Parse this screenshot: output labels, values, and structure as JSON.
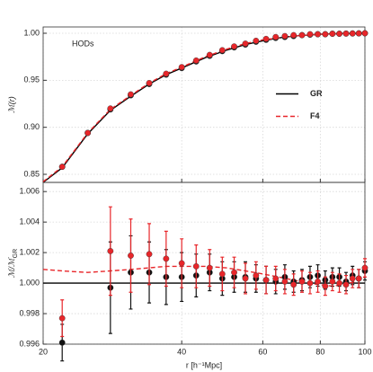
{
  "chart_data": [
    {
      "type": "scatter",
      "annotation": "HODs",
      "ylabel": "ℳ(r)",
      "xlim": [
        20,
        100
      ],
      "xscale": "log",
      "xticks": [
        20,
        40,
        60,
        80,
        100
      ],
      "show_xtick_labels": false,
      "ylim": [
        0.8414,
        1.0067
      ],
      "yticks": [
        0.85,
        {
          "value": 0.9,
          "label": "0.90"
        },
        0.95,
        {
          "value": 1.0,
          "label": "1.00"
        }
      ],
      "grid": true,
      "legend": "center right",
      "x": [
        22,
        25,
        28,
        31,
        34,
        37,
        40,
        43,
        46,
        49,
        52,
        55,
        58,
        61,
        64,
        67,
        70,
        73,
        76,
        79,
        82,
        85,
        88,
        91,
        94,
        97,
        100
      ],
      "series": [
        {
          "color": "#111111",
          "values": [
            0.858,
            0.894,
            0.919,
            0.934,
            0.946,
            0.956,
            0.963,
            0.97,
            0.976,
            0.981,
            0.985,
            0.988,
            0.991,
            0.993,
            0.995,
            0.996,
            0.997,
            0.998,
            0.9985,
            0.999,
            0.999,
            0.9995,
            0.9995,
            0.9997,
            0.9998,
            0.9999,
            1.0
          ]
        },
        {
          "color": "#e8262a",
          "values": [
            0.858,
            0.894,
            0.92,
            0.935,
            0.947,
            0.957,
            0.964,
            0.971,
            0.977,
            0.982,
            0.986,
            0.989,
            0.992,
            0.994,
            0.996,
            0.997,
            0.998,
            0.998,
            0.999,
            0.999,
            0.999,
            0.9995,
            0.9995,
            0.9997,
            0.9998,
            0.9999,
            1.0
          ]
        }
      ],
      "curves": [
        {
          "name": "GR",
          "color": "#000000",
          "dashed": false,
          "x": [
            20,
            22,
            25,
            28,
            31,
            34,
            37,
            40,
            45,
            50,
            55,
            60,
            65,
            70,
            80,
            90,
            100
          ],
          "values": [
            0.8414,
            0.857,
            0.893,
            0.918,
            0.933,
            0.946,
            0.956,
            0.963,
            0.974,
            0.982,
            0.988,
            0.992,
            0.995,
            0.997,
            0.999,
            0.9997,
            1.0
          ]
        },
        {
          "name": "F4",
          "color": "#e8262a",
          "dashed": true,
          "x": [
            20,
            22,
            25,
            28,
            31,
            34,
            37,
            40,
            45,
            50,
            55,
            60,
            65,
            70,
            80,
            90,
            100
          ],
          "values": [
            0.8422,
            0.858,
            0.894,
            0.919,
            0.934,
            0.947,
            0.957,
            0.964,
            0.975,
            0.983,
            0.989,
            0.993,
            0.995,
            0.997,
            0.999,
            0.9997,
            1.0
          ]
        }
      ]
    },
    {
      "type": "scatter",
      "ylabel": "ℳ/ℳ",
      "ylabel_sub": "GR",
      "xlabel": "r [h⁻¹Mpc]",
      "xlim": [
        20,
        100
      ],
      "xscale": "log",
      "xticks": [
        20,
        40,
        60,
        80,
        100
      ],
      "show_xtick_labels": true,
      "ylim": [
        0.996,
        1.0066
      ],
      "yticks": [
        0.996,
        0.998,
        {
          "value": 1.0,
          "label": "1.000"
        },
        1.002,
        1.004,
        1.006
      ],
      "grid": true,
      "x": [
        22,
        25,
        28,
        31,
        34,
        37,
        40,
        43,
        46,
        49,
        52,
        55,
        58,
        61,
        64,
        67,
        70,
        73,
        76,
        79,
        82,
        85,
        88,
        91,
        94,
        97,
        100
      ],
      "series": [
        {
          "color": "#111111",
          "values": [
            0.9961,
            null,
            0.9997,
            1.0007,
            1.0007,
            1.0004,
            1.0004,
            1.0005,
            1.0007,
            1.0003,
            1.0004,
            1.0004,
            1.0003,
            1.0002,
            1.0001,
            1.0004,
            1.0001,
            1.0002,
            1.0004,
            1.0005,
            1.0002,
            1.0004,
            1.0004,
            1.0001,
            1.0005,
            1.0003,
            1.0008
          ],
          "errors": [
            0.0012,
            null,
            0.003,
            0.0024,
            0.002,
            0.0018,
            0.0016,
            0.0014,
            0.0012,
            0.0011,
            0.001,
            0.001,
            0.0009,
            0.0009,
            0.0008,
            0.0008,
            0.0007,
            0.0007,
            0.0007,
            0.0007,
            0.0006,
            0.0006,
            0.0006,
            0.0006,
            0.0006,
            0.0006,
            0.0006
          ]
        },
        {
          "color": "#e8262a",
          "values": [
            0.9977,
            null,
            1.0021,
            1.0018,
            1.0019,
            1.0016,
            1.0013,
            1.0011,
            1.001,
            1.0006,
            1.0007,
            1.0003,
            1.0005,
            1.0002,
            1.0003,
            1.0001,
            0.9999,
            1.0001,
            1.0,
            1.0001,
            0.9998,
            1.0001,
            1.0,
            0.9999,
            1.0003,
            1.0003,
            1.001
          ],
          "errors": [
            0.0012,
            null,
            0.0029,
            0.0024,
            0.002,
            0.0018,
            0.0016,
            0.0014,
            0.0012,
            0.0011,
            0.001,
            0.001,
            0.0009,
            0.0009,
            0.0008,
            0.0008,
            0.0007,
            0.0007,
            0.0007,
            0.0007,
            0.0006,
            0.0006,
            0.0006,
            0.0006,
            0.0006,
            0.0006,
            0.0006
          ]
        }
      ],
      "curves": [
        {
          "color": "#000000",
          "dashed": false,
          "x": [
            20,
            100
          ],
          "values": [
            1.0,
            1.0
          ]
        },
        {
          "color": "#e8262a",
          "dashed": true,
          "x": [
            20,
            22,
            25,
            28,
            31,
            34,
            37,
            40,
            45,
            50,
            55,
            60,
            65,
            70,
            75,
            80,
            85,
            90,
            95,
            100
          ],
          "values": [
            1.0009,
            1.0008,
            1.0007,
            1.0008,
            1.0009,
            1.001,
            1.0011,
            1.0011,
            1.0011,
            1.001,
            1.0008,
            1.0006,
            1.0004,
            1.0002,
            1.0,
            0.9999,
            0.9998,
            0.9999,
            1.0001,
            1.0004
          ]
        }
      ]
    }
  ]
}
